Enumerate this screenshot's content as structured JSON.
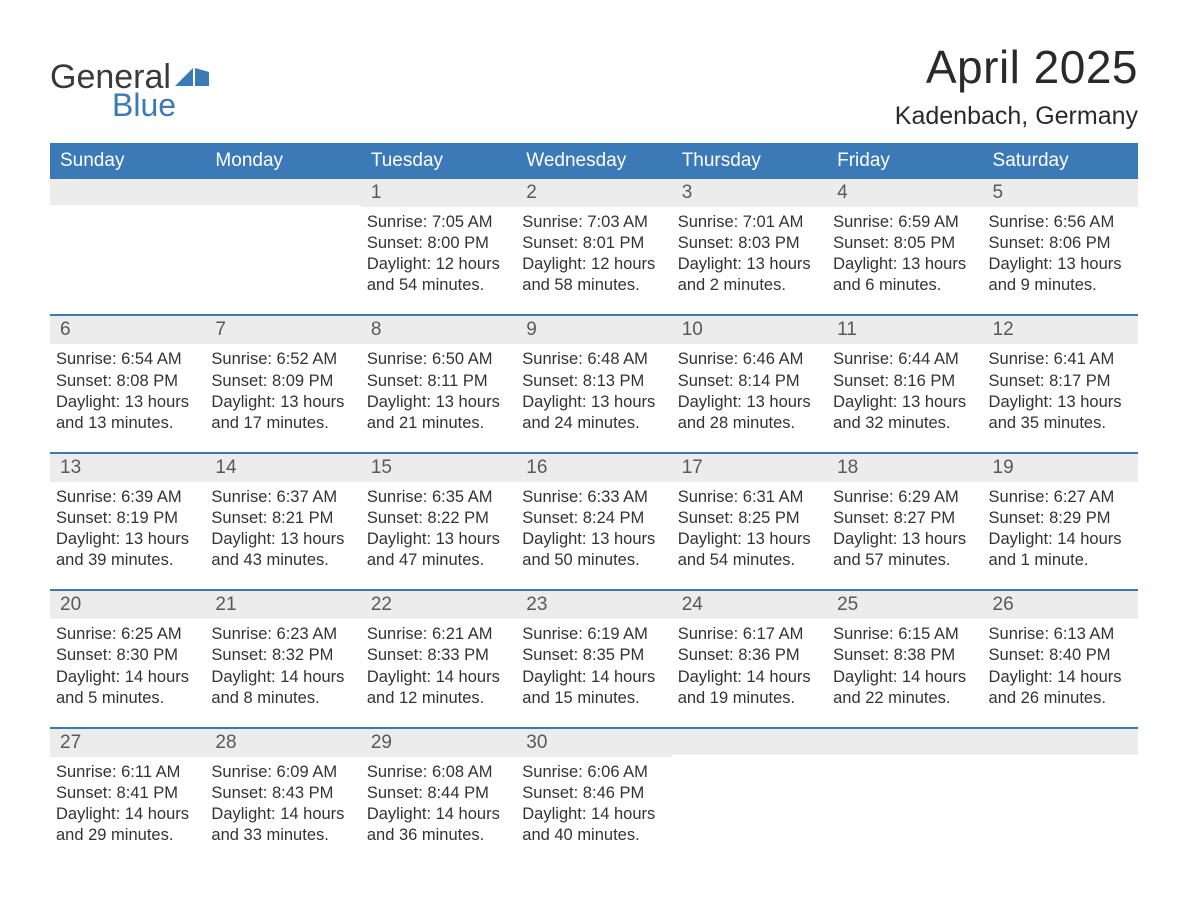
{
  "logo": {
    "word1": "General",
    "word2": "Blue",
    "flag_color": "#3b79b7"
  },
  "title": "April 2025",
  "location": "Kadenbach, Germany",
  "colors": {
    "header_bg": "#3b79b7",
    "header_text": "#ffffff",
    "daynum_bg": "#ececec",
    "daynum_text": "#595959",
    "body_text": "#333333",
    "week_divider": "#3b79b7",
    "page_bg": "#ffffff"
  },
  "day_headers": [
    "Sunday",
    "Monday",
    "Tuesday",
    "Wednesday",
    "Thursday",
    "Friday",
    "Saturday"
  ],
  "weeks": [
    [
      {
        "blank": true
      },
      {
        "blank": true
      },
      {
        "num": "1",
        "sunrise": "Sunrise: 7:05 AM",
        "sunset": "Sunset: 8:00 PM",
        "daylight1": "Daylight: 12 hours",
        "daylight2": "and 54 minutes."
      },
      {
        "num": "2",
        "sunrise": "Sunrise: 7:03 AM",
        "sunset": "Sunset: 8:01 PM",
        "daylight1": "Daylight: 12 hours",
        "daylight2": "and 58 minutes."
      },
      {
        "num": "3",
        "sunrise": "Sunrise: 7:01 AM",
        "sunset": "Sunset: 8:03 PM",
        "daylight1": "Daylight: 13 hours",
        "daylight2": "and 2 minutes."
      },
      {
        "num": "4",
        "sunrise": "Sunrise: 6:59 AM",
        "sunset": "Sunset: 8:05 PM",
        "daylight1": "Daylight: 13 hours",
        "daylight2": "and 6 minutes."
      },
      {
        "num": "5",
        "sunrise": "Sunrise: 6:56 AM",
        "sunset": "Sunset: 8:06 PM",
        "daylight1": "Daylight: 13 hours",
        "daylight2": "and 9 minutes."
      }
    ],
    [
      {
        "num": "6",
        "sunrise": "Sunrise: 6:54 AM",
        "sunset": "Sunset: 8:08 PM",
        "daylight1": "Daylight: 13 hours",
        "daylight2": "and 13 minutes."
      },
      {
        "num": "7",
        "sunrise": "Sunrise: 6:52 AM",
        "sunset": "Sunset: 8:09 PM",
        "daylight1": "Daylight: 13 hours",
        "daylight2": "and 17 minutes."
      },
      {
        "num": "8",
        "sunrise": "Sunrise: 6:50 AM",
        "sunset": "Sunset: 8:11 PM",
        "daylight1": "Daylight: 13 hours",
        "daylight2": "and 21 minutes."
      },
      {
        "num": "9",
        "sunrise": "Sunrise: 6:48 AM",
        "sunset": "Sunset: 8:13 PM",
        "daylight1": "Daylight: 13 hours",
        "daylight2": "and 24 minutes."
      },
      {
        "num": "10",
        "sunrise": "Sunrise: 6:46 AM",
        "sunset": "Sunset: 8:14 PM",
        "daylight1": "Daylight: 13 hours",
        "daylight2": "and 28 minutes."
      },
      {
        "num": "11",
        "sunrise": "Sunrise: 6:44 AM",
        "sunset": "Sunset: 8:16 PM",
        "daylight1": "Daylight: 13 hours",
        "daylight2": "and 32 minutes."
      },
      {
        "num": "12",
        "sunrise": "Sunrise: 6:41 AM",
        "sunset": "Sunset: 8:17 PM",
        "daylight1": "Daylight: 13 hours",
        "daylight2": "and 35 minutes."
      }
    ],
    [
      {
        "num": "13",
        "sunrise": "Sunrise: 6:39 AM",
        "sunset": "Sunset: 8:19 PM",
        "daylight1": "Daylight: 13 hours",
        "daylight2": "and 39 minutes."
      },
      {
        "num": "14",
        "sunrise": "Sunrise: 6:37 AM",
        "sunset": "Sunset: 8:21 PM",
        "daylight1": "Daylight: 13 hours",
        "daylight2": "and 43 minutes."
      },
      {
        "num": "15",
        "sunrise": "Sunrise: 6:35 AM",
        "sunset": "Sunset: 8:22 PM",
        "daylight1": "Daylight: 13 hours",
        "daylight2": "and 47 minutes."
      },
      {
        "num": "16",
        "sunrise": "Sunrise: 6:33 AM",
        "sunset": "Sunset: 8:24 PM",
        "daylight1": "Daylight: 13 hours",
        "daylight2": "and 50 minutes."
      },
      {
        "num": "17",
        "sunrise": "Sunrise: 6:31 AM",
        "sunset": "Sunset: 8:25 PM",
        "daylight1": "Daylight: 13 hours",
        "daylight2": "and 54 minutes."
      },
      {
        "num": "18",
        "sunrise": "Sunrise: 6:29 AM",
        "sunset": "Sunset: 8:27 PM",
        "daylight1": "Daylight: 13 hours",
        "daylight2": "and 57 minutes."
      },
      {
        "num": "19",
        "sunrise": "Sunrise: 6:27 AM",
        "sunset": "Sunset: 8:29 PM",
        "daylight1": "Daylight: 14 hours",
        "daylight2": "and 1 minute."
      }
    ],
    [
      {
        "num": "20",
        "sunrise": "Sunrise: 6:25 AM",
        "sunset": "Sunset: 8:30 PM",
        "daylight1": "Daylight: 14 hours",
        "daylight2": "and 5 minutes."
      },
      {
        "num": "21",
        "sunrise": "Sunrise: 6:23 AM",
        "sunset": "Sunset: 8:32 PM",
        "daylight1": "Daylight: 14 hours",
        "daylight2": "and 8 minutes."
      },
      {
        "num": "22",
        "sunrise": "Sunrise: 6:21 AM",
        "sunset": "Sunset: 8:33 PM",
        "daylight1": "Daylight: 14 hours",
        "daylight2": "and 12 minutes."
      },
      {
        "num": "23",
        "sunrise": "Sunrise: 6:19 AM",
        "sunset": "Sunset: 8:35 PM",
        "daylight1": "Daylight: 14 hours",
        "daylight2": "and 15 minutes."
      },
      {
        "num": "24",
        "sunrise": "Sunrise: 6:17 AM",
        "sunset": "Sunset: 8:36 PM",
        "daylight1": "Daylight: 14 hours",
        "daylight2": "and 19 minutes."
      },
      {
        "num": "25",
        "sunrise": "Sunrise: 6:15 AM",
        "sunset": "Sunset: 8:38 PM",
        "daylight1": "Daylight: 14 hours",
        "daylight2": "and 22 minutes."
      },
      {
        "num": "26",
        "sunrise": "Sunrise: 6:13 AM",
        "sunset": "Sunset: 8:40 PM",
        "daylight1": "Daylight: 14 hours",
        "daylight2": "and 26 minutes."
      }
    ],
    [
      {
        "num": "27",
        "sunrise": "Sunrise: 6:11 AM",
        "sunset": "Sunset: 8:41 PM",
        "daylight1": "Daylight: 14 hours",
        "daylight2": "and 29 minutes."
      },
      {
        "num": "28",
        "sunrise": "Sunrise: 6:09 AM",
        "sunset": "Sunset: 8:43 PM",
        "daylight1": "Daylight: 14 hours",
        "daylight2": "and 33 minutes."
      },
      {
        "num": "29",
        "sunrise": "Sunrise: 6:08 AM",
        "sunset": "Sunset: 8:44 PM",
        "daylight1": "Daylight: 14 hours",
        "daylight2": "and 36 minutes."
      },
      {
        "num": "30",
        "sunrise": "Sunrise: 6:06 AM",
        "sunset": "Sunset: 8:46 PM",
        "daylight1": "Daylight: 14 hours",
        "daylight2": "and 40 minutes."
      },
      {
        "blank": true
      },
      {
        "blank": true
      },
      {
        "blank": true
      }
    ]
  ]
}
